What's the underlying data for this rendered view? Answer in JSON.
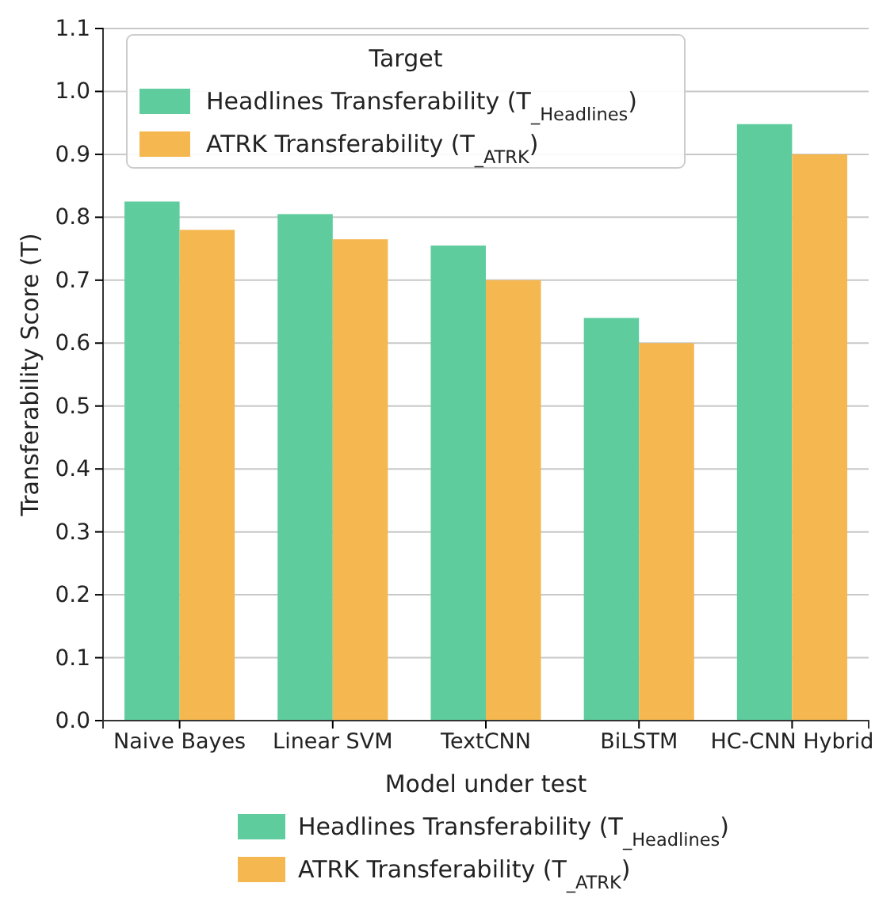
{
  "chart_data": {
    "type": "bar",
    "xlabel": "Model under test",
    "ylabel": "Transferability Score (T)",
    "legend_title": "Target",
    "categories": [
      "Naive Bayes",
      "Linear SVM",
      "TextCNN",
      "BiLSTM",
      "HC-CNN Hybrid"
    ],
    "series": [
      {
        "name": "Headlines Transferability (T$_{_Headlines}$)",
        "color": "#5fcc9e",
        "values": [
          0.825,
          0.805,
          0.755,
          0.64,
          0.948
        ]
      },
      {
        "name": "ATRK Transferability (T$_{_ATRK}$)",
        "color": "#f5b74f",
        "values": [
          0.78,
          0.765,
          0.7,
          0.6,
          0.9
        ]
      }
    ],
    "ylim": [
      0,
      1.1
    ],
    "yticks": [
      {
        "value": 0,
        "label": "0.0"
      },
      0.1,
      0.2,
      0.3,
      0.4,
      0.5,
      0.6,
      0.7,
      0.8,
      0.9,
      {
        "value": 1,
        "label": "1.0"
      },
      1.1
    ],
    "grid": "y",
    "legend": [
      "top left",
      "bottom"
    ]
  }
}
